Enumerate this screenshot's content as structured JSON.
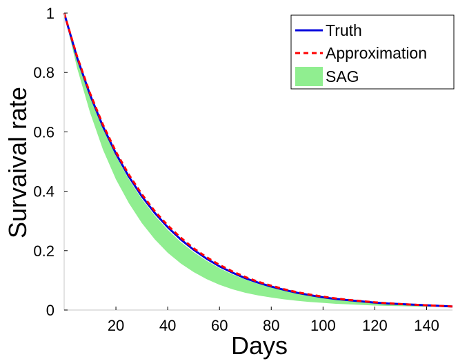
{
  "chart_data": {
    "type": "line",
    "xlabel": "Days",
    "ylabel": "Survaival rate",
    "xlim": [
      0,
      150
    ],
    "ylim": [
      0,
      1
    ],
    "xticks": [
      20,
      40,
      60,
      80,
      100,
      120,
      140
    ],
    "yticks": [
      0,
      0.2,
      0.4,
      0.6,
      0.8,
      1
    ],
    "grid": false,
    "legend_position": "top-right",
    "x": [
      0,
      5,
      10,
      15,
      20,
      25,
      30,
      35,
      40,
      45,
      50,
      55,
      60,
      65,
      70,
      75,
      80,
      85,
      90,
      95,
      100,
      105,
      110,
      115,
      120,
      125,
      130,
      135,
      140,
      145,
      150
    ],
    "series": [
      {
        "name": "Truth",
        "kind": "line",
        "color": "#0000dd",
        "style": "solid",
        "values": [
          1.0,
          0.85,
          0.725,
          0.618,
          0.527,
          0.449,
          0.383,
          0.327,
          0.279,
          0.238,
          0.203,
          0.173,
          0.147,
          0.126,
          0.107,
          0.092,
          0.079,
          0.068,
          0.058,
          0.05,
          0.043,
          0.037,
          0.033,
          0.029,
          0.025,
          0.022,
          0.02,
          0.018,
          0.016,
          0.014,
          0.012
        ]
      },
      {
        "name": "Approximation",
        "kind": "line",
        "color": "#ff0000",
        "style": "dashed",
        "values": [
          1.0,
          0.854,
          0.73,
          0.624,
          0.533,
          0.456,
          0.39,
          0.333,
          0.285,
          0.244,
          0.208,
          0.178,
          0.152,
          0.13,
          0.111,
          0.095,
          0.082,
          0.07,
          0.06,
          0.052,
          0.045,
          0.039,
          0.034,
          0.03,
          0.026,
          0.023,
          0.02,
          0.018,
          0.016,
          0.014,
          0.012
        ]
      },
      {
        "name": "SAG",
        "kind": "band",
        "color": "#90ee90",
        "upper": [
          1.0,
          0.848,
          0.72,
          0.611,
          0.519,
          0.44,
          0.374,
          0.318,
          0.27,
          0.229,
          0.195,
          0.166,
          0.141,
          0.12,
          0.103,
          0.088,
          0.076,
          0.066,
          0.057,
          0.049,
          0.043,
          0.037,
          0.033,
          0.029,
          0.025,
          0.022,
          0.02,
          0.018,
          0.016,
          0.014,
          0.012
        ],
        "lower": [
          1.0,
          0.815,
          0.665,
          0.54,
          0.44,
          0.36,
          0.293,
          0.238,
          0.193,
          0.157,
          0.128,
          0.104,
          0.085,
          0.07,
          0.058,
          0.049,
          0.042,
          0.036,
          0.031,
          0.027,
          0.024,
          0.021,
          0.019,
          0.017,
          0.015,
          0.014,
          0.013,
          0.012,
          0.011,
          0.011,
          0.01
        ]
      }
    ]
  }
}
